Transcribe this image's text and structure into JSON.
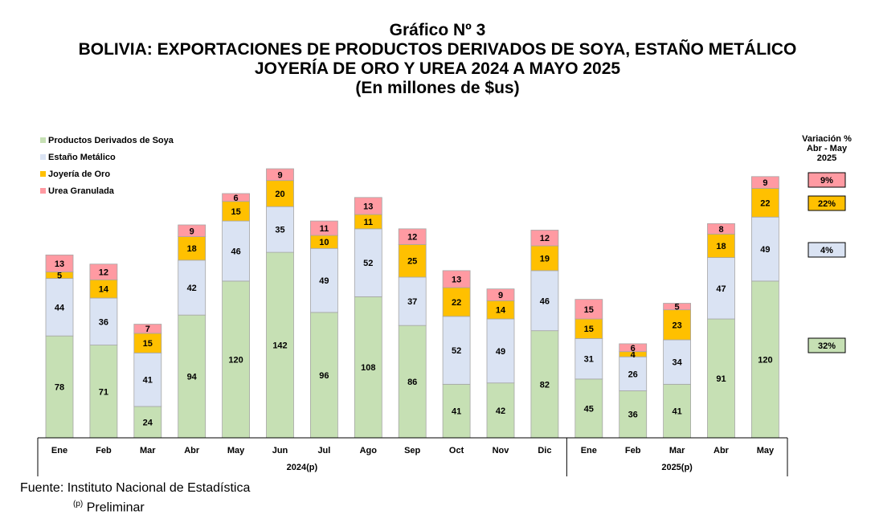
{
  "header": {
    "line1": "Gráfico Nº 3",
    "line2": "BOLIVIA: EXPORTACIONES DE PRODUCTOS DERIVADOS DE SOYA, ESTAÑO METÁLICO",
    "line3": "JOYERÍA DE ORO Y UREA 2024 A MAYO 2025",
    "line4": "(En millones de $us)"
  },
  "footer": {
    "source": "Fuente: Instituto Nacional de Estadística",
    "note_marker": "(p)",
    "note_text": "Preliminar"
  },
  "colors": {
    "soya": "#c6e0b4",
    "estano": "#dae3f3",
    "oro": "#ffc000",
    "urea": "#ff9aa2",
    "border": "#a6a6a6"
  },
  "chart_data": {
    "type": "bar",
    "stacked": true,
    "categories": [
      "Ene",
      "Feb",
      "Mar",
      "Abr",
      "May",
      "Jun",
      "Jul",
      "Ago",
      "Sep",
      "Oct",
      "Nov",
      "Dic",
      "Ene",
      "Feb",
      "Mar",
      "Abr",
      "May"
    ],
    "groups": [
      {
        "label": "2024(p)",
        "count": 12
      },
      {
        "label": "2025(p)",
        "count": 5
      }
    ],
    "series": [
      {
        "name": "Productos Derivados de Soya",
        "values": [
          78,
          71,
          24,
          94,
          120,
          142,
          96,
          108,
          86,
          41,
          42,
          82,
          45,
          36,
          41,
          91,
          120
        ]
      },
      {
        "name": "Estaño Metálico",
        "values": [
          44,
          36,
          41,
          42,
          46,
          35,
          49,
          52,
          37,
          52,
          49,
          46,
          31,
          26,
          34,
          47,
          49
        ]
      },
      {
        "name": "Joyería de Oro",
        "values": [
          5,
          14,
          15,
          18,
          15,
          20,
          10,
          11,
          25,
          22,
          14,
          19,
          15,
          4,
          23,
          18,
          22
        ]
      },
      {
        "name": "Urea Granulada",
        "values": [
          13,
          12,
          7,
          9,
          6,
          9,
          11,
          13,
          12,
          13,
          9,
          12,
          15,
          6,
          5,
          8,
          9
        ]
      }
    ],
    "legend_position": "top-left",
    "grid": false,
    "variation": {
      "title": [
        "Variación %",
        "Abr - May",
        "2025"
      ],
      "items": [
        {
          "series": "Urea Granulada",
          "label": "9%"
        },
        {
          "series": "Joyería de Oro",
          "label": "22%"
        },
        {
          "series": "Estaño Metálico",
          "label": "4%"
        },
        {
          "series": "Productos Derivados de Soya",
          "label": "32%"
        }
      ]
    }
  }
}
